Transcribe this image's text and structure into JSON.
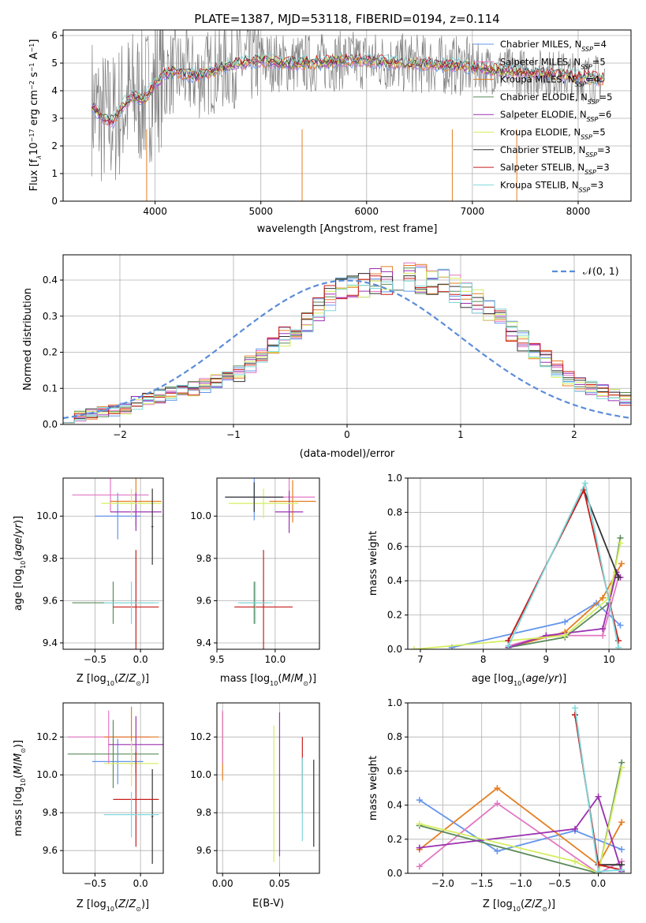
{
  "figure_title": "PLATE=1387, MJD=53118, FIBERID=0194, z=0.114",
  "series_styles": [
    {
      "name": "Chabrier MILES, N_SSP=4",
      "color": "#6495ed"
    },
    {
      "name": "Salpeter MILES, N_SSP=5",
      "color": "#e377c2"
    },
    {
      "name": "Kroupa MILES, N_SSP=4",
      "color": "#e67e22"
    },
    {
      "name": "Chabrier ELODIE, N_SSP=5",
      "color": "#5a8a5a"
    },
    {
      "name": "Salpeter ELODIE, N_SSP=6",
      "color": "#9b30b0"
    },
    {
      "name": "Kroupa ELODIE, N_SSP=5",
      "color": "#d4ee5e"
    },
    {
      "name": "Chabrier STELIB, N_SSP=3",
      "color": "#333333"
    },
    {
      "name": "Salpeter STELIB, N_SSP=3",
      "color": "#c81e1e"
    },
    {
      "name": "Kroupa STELIB, N_SSP=3",
      "color": "#7fd8dc"
    }
  ],
  "chart_data": [
    {
      "id": "spectrum",
      "type": "line",
      "xlabel": "wavelength [Angstrom, rest frame]",
      "ylabel_main": "Flux [f",
      "ylabel_sub": "λ",
      "ylabel_rest": "10",
      "ylabel_exp1": "−17",
      "ylabel_mid": " erg cm",
      "ylabel_exp2": "−2",
      "ylabel_s": " s",
      "ylabel_exp3": "−1",
      "ylabel_end": " A",
      "ylabel_exp4": "−1",
      "ylabel_close": "]",
      "xlim": [
        3130,
        8500
      ],
      "ylim": [
        0,
        6.2
      ],
      "xticks": [
        "4000",
        "5000",
        "6000",
        "7000",
        "8000"
      ],
      "xtick_values": [
        4000,
        5000,
        6000,
        7000,
        8000
      ],
      "yticks": [
        "0",
        "1",
        "2",
        "3",
        "4",
        "5",
        "6"
      ],
      "ytick_values": [
        0,
        1,
        2,
        3,
        4,
        5,
        6
      ],
      "legend_position": "right",
      "legend_entries": [
        {
          "label": "Chabrier MILES, N",
          "sub": "SSP",
          "rest": "=4"
        },
        {
          "label": "Salpeter MILES, N",
          "sub": "SSP",
          "rest": "=5"
        },
        {
          "label": "Kroupa MILES, N",
          "sub": "SSP",
          "rest": "=4"
        },
        {
          "label": "Chabrier ELODIE, N",
          "sub": "SSP",
          "rest": "=5"
        },
        {
          "label": "Salpeter ELODIE, N",
          "sub": "SSP",
          "rest": "=6"
        },
        {
          "label": "Kroupa ELODIE, N",
          "sub": "SSP",
          "rest": "=5"
        },
        {
          "label": "Chabrier STELIB, N",
          "sub": "SSP",
          "rest": "=3"
        },
        {
          "label": "Salpeter STELIB, N",
          "sub": "SSP",
          "rest": "=3"
        },
        {
          "label": "Kroupa STELIB, N",
          "sub": "SSP",
          "rest": "=3"
        }
      ],
      "model_continuum": [
        [
          3400,
          3.5
        ],
        [
          3500,
          3.0
        ],
        [
          3600,
          2.9
        ],
        [
          3700,
          3.5
        ],
        [
          3800,
          3.8
        ],
        [
          3900,
          3.7
        ],
        [
          4000,
          4.2
        ],
        [
          4100,
          4.6
        ],
        [
          4200,
          4.7
        ],
        [
          4400,
          4.5
        ],
        [
          4600,
          4.8
        ],
        [
          4800,
          5.0
        ],
        [
          5000,
          5.1
        ],
        [
          5200,
          5.0
        ],
        [
          5500,
          5.0
        ],
        [
          5800,
          5.1
        ],
        [
          6000,
          5.1
        ],
        [
          6300,
          5.0
        ],
        [
          6600,
          4.95
        ],
        [
          6900,
          4.9
        ],
        [
          7200,
          4.75
        ],
        [
          7500,
          4.65
        ],
        [
          7800,
          4.6
        ],
        [
          8000,
          4.5
        ],
        [
          8250,
          4.4
        ]
      ],
      "observed_range": [
        3400,
        8250
      ],
      "observed_color": "#808080"
    },
    {
      "id": "residuals",
      "type": "histogram",
      "xlabel": "(data-model)/error",
      "ylabel": "Normed distribution",
      "xlim": [
        -2.5,
        2.5
      ],
      "ylim": [
        0,
        0.47
      ],
      "xticks": [
        "−2",
        "−1",
        "0",
        "1",
        "2"
      ],
      "xtick_values": [
        -2,
        -1,
        0,
        1,
        2
      ],
      "yticks": [
        "0.0",
        "0.1",
        "0.2",
        "0.3",
        "0.4"
      ],
      "ytick_values": [
        0,
        0.1,
        0.2,
        0.3,
        0.4
      ],
      "legend_position": "top-right",
      "legend_label": "𝒩(0, 1)",
      "normal_color": "#5b8dd9",
      "bin_edges_start": -2.5,
      "bin_width": 0.1,
      "base_values": [
        0.02,
        0.022,
        0.028,
        0.034,
        0.04,
        0.046,
        0.06,
        0.07,
        0.078,
        0.085,
        0.09,
        0.1,
        0.108,
        0.12,
        0.13,
        0.14,
        0.165,
        0.19,
        0.215,
        0.24,
        0.255,
        0.28,
        0.32,
        0.35,
        0.37,
        0.38,
        0.385,
        0.395,
        0.4,
        0.405,
        0.41,
        0.405,
        0.4,
        0.39,
        0.375,
        0.36,
        0.34,
        0.315,
        0.29,
        0.26,
        0.23,
        0.205,
        0.18,
        0.155,
        0.13,
        0.11,
        0.1,
        0.09,
        0.08,
        0.07
      ]
    },
    {
      "id": "age_vs_Z",
      "type": "errorbar",
      "xlabel": "Z [log",
      "xlabel_sub": "10",
      "xlabel_rest": "(Z/Z",
      "xlabel_sun": "⊙",
      "xlabel_close": ")]",
      "ylabel": "age  [log",
      "ylabel_sub": "10",
      "ylabel_rest": "(age/yr)]",
      "xlim": [
        -0.85,
        0.25
      ],
      "ylim": [
        9.37,
        10.18
      ],
      "xticks": [
        "−0.5",
        "0.0"
      ],
      "xtick_values": [
        -0.5,
        0.0
      ],
      "yticks": [
        "9.4",
        "9.6",
        "9.8",
        "10.0"
      ],
      "ytick_values": [
        9.4,
        9.6,
        9.8,
        10.0
      ],
      "points": [
        {
          "x": -0.25,
          "y": 10.0,
          "xerr": 0.25,
          "yerr": 0.11,
          "s": 0
        },
        {
          "x": -0.33,
          "y": 10.1,
          "xerr": 0.42,
          "yerr": 0.08,
          "s": 1
        },
        {
          "x": -0.05,
          "y": 10.07,
          "xerr": 0.28,
          "yerr": 0.12,
          "s": 2
        },
        {
          "x": -0.3,
          "y": 9.59,
          "xerr": 0.45,
          "yerr": 0.1,
          "s": 3
        },
        {
          "x": -0.05,
          "y": 10.02,
          "xerr": 0.28,
          "yerr": 0.09,
          "s": 4
        },
        {
          "x": -0.1,
          "y": 10.06,
          "xerr": 0.33,
          "yerr": 0.07,
          "s": 5
        },
        {
          "x": 0.13,
          "y": 9.95,
          "xerr": 0.01,
          "yerr": 0.18,
          "s": 6
        },
        {
          "x": -0.05,
          "y": 9.57,
          "xerr": 0.25,
          "yerr": 0.27,
          "s": 7
        },
        {
          "x": -0.1,
          "y": 9.59,
          "xerr": 0.3,
          "yerr": 0.1,
          "s": 8
        }
      ]
    },
    {
      "id": "age_vs_mass",
      "type": "errorbar",
      "xlabel": "mass [log",
      "xlabel_sub": "10",
      "xlabel_rest": "(M/M",
      "xlabel_sun": "⊙",
      "xlabel_close": ")]",
      "xlim": [
        9.5,
        10.38
      ],
      "ylim": [
        9.37,
        10.18
      ],
      "xticks": [
        "9.5",
        "10.0"
      ],
      "xtick_values": [
        9.5,
        10.0
      ],
      "yticks": [
        "9.4",
        "9.6",
        "9.8",
        "10.0"
      ],
      "ytick_values": [
        9.4,
        9.6,
        9.8,
        10.0
      ],
      "points": [
        {
          "x": 9.82,
          "y": 10.09,
          "xerr": 0.25,
          "yerr": 0.11,
          "s": 0
        },
        {
          "x": 10.12,
          "y": 10.09,
          "xerr": 0.22,
          "yerr": 0.1,
          "s": 1
        },
        {
          "x": 10.15,
          "y": 10.07,
          "xerr": 0.2,
          "yerr": 0.1,
          "s": 2
        },
        {
          "x": 9.82,
          "y": 9.59,
          "xerr": 0.12,
          "yerr": 0.1,
          "s": 3
        },
        {
          "x": 10.12,
          "y": 10.02,
          "xerr": 0.12,
          "yerr": 0.1,
          "s": 4
        },
        {
          "x": 9.9,
          "y": 10.06,
          "xerr": 0.3,
          "yerr": 0.07,
          "s": 5
        },
        {
          "x": 9.82,
          "y": 10.09,
          "xerr": 0.25,
          "yerr": 0.07,
          "s": 6
        },
        {
          "x": 9.9,
          "y": 9.57,
          "xerr": 0.25,
          "yerr": 0.27,
          "s": 7
        },
        {
          "x": 9.83,
          "y": 9.59,
          "xerr": 0.15,
          "yerr": 0.1,
          "s": 8
        }
      ]
    },
    {
      "id": "weight_vs_age",
      "type": "line",
      "xlabel": "age  [log",
      "xlabel_sub": "10",
      "xlabel_rest": "(age/yr)]",
      "ylabel": "mass weight",
      "xlim": [
        6.8,
        10.35
      ],
      "ylim": [
        0,
        1
      ],
      "xticks": [
        "7",
        "8",
        "9",
        "10"
      ],
      "xtick_values": [
        7,
        8,
        9,
        10
      ],
      "yticks": [
        "0.0",
        "0.2",
        "0.4",
        "0.6",
        "0.8",
        "1.0"
      ],
      "ytick_values": [
        0,
        0.2,
        0.4,
        0.6,
        0.8,
        1.0
      ],
      "series": [
        {
          "s": 0,
          "x": [
            7.5,
            9.3,
            9.8,
            10.18
          ],
          "y": [
            0.01,
            0.16,
            0.27,
            0.14
          ]
        },
        {
          "s": 1,
          "x": [
            8.4,
            9.0,
            9.9,
            10.15
          ],
          "y": [
            0.02,
            0.08,
            0.08,
            0.42
          ]
        },
        {
          "s": 2,
          "x": [
            8.4,
            9.3,
            9.9,
            10.2
          ],
          "y": [
            0.01,
            0.1,
            0.3,
            0.5
          ]
        },
        {
          "s": 3,
          "x": [
            8.4,
            9.3,
            10.0,
            10.18
          ],
          "y": [
            0.01,
            0.07,
            0.27,
            0.65
          ]
        },
        {
          "s": 4,
          "x": [
            8.4,
            9.0,
            9.9,
            10.12,
            10.18
          ],
          "y": [
            0.01,
            0.08,
            0.12,
            0.45,
            0.42
          ]
        },
        {
          "s": 5,
          "x": [
            6.9,
            9.3,
            10.0,
            10.18
          ],
          "y": [
            0.0,
            0.08,
            0.3,
            0.62
          ]
        },
        {
          "s": 6,
          "x": [
            8.4,
            9.6,
            10.15
          ],
          "y": [
            0.05,
            0.93,
            0.42
          ]
        },
        {
          "s": 7,
          "x": [
            8.4,
            9.6,
            10.15
          ],
          "y": [
            0.05,
            0.93,
            0.05
          ]
        },
        {
          "s": 8,
          "x": [
            8.4,
            9.62,
            10.15
          ],
          "y": [
            0.02,
            0.97,
            0.01
          ]
        }
      ]
    },
    {
      "id": "mass_vs_Z",
      "type": "errorbar",
      "xlabel": "Z [log",
      "xlabel_sub": "10",
      "xlabel_rest": "(Z/Z",
      "xlabel_sun": "⊙",
      "xlabel_close": ")]",
      "ylabel": "mass [log",
      "ylabel_sub": "10",
      "ylabel_rest": "(M/M",
      "ylabel_sun": "⊙",
      "ylabel_close": ")]",
      "xlim": [
        -0.85,
        0.25
      ],
      "ylim": [
        9.48,
        10.38
      ],
      "xticks": [
        "−0.5",
        "0.0"
      ],
      "xtick_values": [
        -0.5,
        0.0
      ],
      "yticks": [
        "9.6",
        "9.8",
        "10.0",
        "10.2"
      ],
      "ytick_values": [
        9.6,
        9.8,
        10.0,
        10.2
      ],
      "points": [
        {
          "x": -0.25,
          "y": 10.07,
          "xerr": 0.28,
          "yerr": 0.12,
          "s": 0
        },
        {
          "x": -0.35,
          "y": 10.2,
          "xerr": 0.45,
          "yerr": 0.14,
          "s": 1
        },
        {
          "x": -0.1,
          "y": 10.2,
          "xerr": 0.3,
          "yerr": 0.16,
          "s": 2
        },
        {
          "x": -0.3,
          "y": 10.11,
          "xerr": 0.5,
          "yerr": 0.18,
          "s": 3
        },
        {
          "x": -0.05,
          "y": 10.16,
          "xerr": 0.3,
          "yerr": 0.15,
          "s": 4
        },
        {
          "x": -0.1,
          "y": 10.06,
          "xerr": 0.3,
          "yerr": 0.12,
          "s": 5
        },
        {
          "x": 0.13,
          "y": 9.78,
          "xerr": 0.01,
          "yerr": 0.25,
          "s": 6
        },
        {
          "x": -0.05,
          "y": 9.87,
          "xerr": 0.25,
          "yerr": 0.25,
          "s": 7
        },
        {
          "x": -0.1,
          "y": 9.79,
          "xerr": 0.3,
          "yerr": 0.12,
          "s": 8
        }
      ]
    },
    {
      "id": "mass_vs_ebv",
      "type": "errorbar",
      "xlabel": "E(B-V)",
      "xlim": [
        -0.005,
        0.085
      ],
      "ylim": [
        9.48,
        10.38
      ],
      "xticks": [
        "0.00",
        "0.05"
      ],
      "xtick_values": [
        0.0,
        0.05
      ],
      "yticks": [
        "9.6",
        "9.8",
        "10.0",
        "10.2"
      ],
      "ytick_values": [
        9.6,
        9.8,
        10.0,
        10.2
      ],
      "points": [
        {
          "x": 0.0,
          "y": 10.15,
          "xerr": 0,
          "yerr": 0.18,
          "s": 2
        },
        {
          "x": 0.0,
          "y": 10.2,
          "xerr": 0,
          "yerr": 0.14,
          "s": 1
        },
        {
          "x": 0.045,
          "y": 9.9,
          "xerr": 0,
          "yerr": 0.36,
          "s": 5
        },
        {
          "x": 0.05,
          "y": 9.95,
          "xerr": 0,
          "yerr": 0.38,
          "s": 4
        },
        {
          "x": 0.07,
          "y": 10.0,
          "xerr": 0,
          "yerr": 0.2,
          "s": 7
        },
        {
          "x": 0.07,
          "y": 9.87,
          "xerr": 0,
          "yerr": 0.22,
          "s": 8
        },
        {
          "x": 0.08,
          "y": 9.85,
          "xerr": 0,
          "yerr": 0.23,
          "s": 6
        }
      ]
    },
    {
      "id": "weight_vs_Z",
      "type": "line",
      "xlabel": "Z [log",
      "xlabel_sub": "10",
      "xlabel_rest": "(Z/Z",
      "xlabel_sun": "⊙",
      "xlabel_close": ")]",
      "ylabel": "mass weight",
      "xlim": [
        -2.45,
        0.42
      ],
      "ylim": [
        0,
        1
      ],
      "xticks": [
        "−2.0",
        "−1.5",
        "−1.0",
        "−0.5",
        "0.0"
      ],
      "xtick_values": [
        -2.0,
        -1.5,
        -1.0,
        -0.5,
        0.0
      ],
      "yticks": [
        "0.0",
        "0.2",
        "0.4",
        "0.6",
        "0.8",
        "1.0"
      ],
      "ytick_values": [
        0,
        0.2,
        0.4,
        0.6,
        0.8,
        1.0
      ],
      "series": [
        {
          "s": 0,
          "x": [
            -2.3,
            -1.3,
            -0.3,
            0.3
          ],
          "y": [
            0.43,
            0.13,
            0.25,
            0.14
          ]
        },
        {
          "s": 1,
          "x": [
            -2.3,
            -1.3,
            0.0,
            0.3
          ],
          "y": [
            0.04,
            0.41,
            0.0,
            0.07
          ]
        },
        {
          "s": 2,
          "x": [
            -2.3,
            -1.3,
            0.0,
            0.3
          ],
          "y": [
            0.14,
            0.5,
            0.05,
            0.3
          ]
        },
        {
          "s": 3,
          "x": [
            -2.3,
            0.0,
            0.3
          ],
          "y": [
            0.28,
            0.0,
            0.65
          ]
        },
        {
          "s": 4,
          "x": [
            -2.3,
            -0.3,
            0.0,
            0.3
          ],
          "y": [
            0.15,
            0.26,
            0.45,
            0.01
          ]
        },
        {
          "s": 5,
          "x": [
            -2.3,
            -0.3,
            0.0,
            0.3
          ],
          "y": [
            0.29,
            0.07,
            0.0,
            0.62
          ]
        },
        {
          "s": 6,
          "x": [
            -0.3,
            0.0,
            0.3
          ],
          "y": [
            0.93,
            0.05,
            0.05
          ]
        },
        {
          "s": 7,
          "x": [
            -0.3,
            0.0,
            0.3
          ],
          "y": [
            0.93,
            0.05,
            0.02
          ]
        },
        {
          "s": 8,
          "x": [
            -0.3,
            0.0,
            0.3
          ],
          "y": [
            0.97,
            0.01,
            0.02
          ]
        }
      ]
    }
  ]
}
